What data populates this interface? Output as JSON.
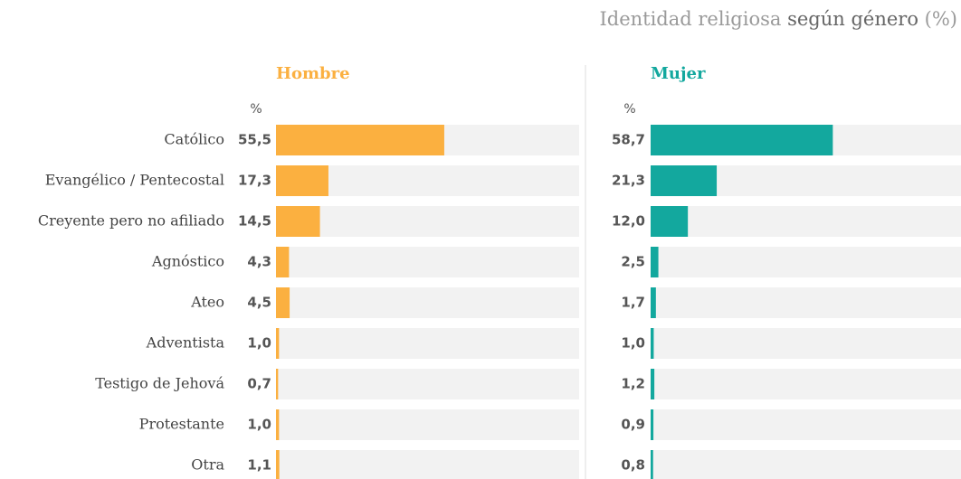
{
  "chart_data": {
    "type": "bar",
    "title_parts": [
      "Identidad religiosa",
      "según género",
      "(%)"
    ],
    "unit_label": "%",
    "categories": [
      "Católico",
      "Evangélico / Pentecostal",
      "Creyente pero no afiliado",
      "Agnóstico",
      "Ateo",
      "Adventista",
      "Testigo de Jehová",
      "Protestante",
      "Otra"
    ],
    "xlim": [
      0,
      100
    ],
    "series": [
      {
        "name": "Hombre",
        "color": "#fbb040",
        "values": [
          55.5,
          17.3,
          14.5,
          4.3,
          4.5,
          1.0,
          0.7,
          1.0,
          1.1
        ],
        "value_labels": [
          "55,5",
          "17,3",
          "14,5",
          "4,3",
          "4,5",
          "1,0",
          "0,7",
          "1,0",
          "1,1"
        ]
      },
      {
        "name": "Mujer",
        "color": "#13a89e",
        "values": [
          58.7,
          21.3,
          12.0,
          2.5,
          1.7,
          1.0,
          1.2,
          0.9,
          0.8
        ],
        "value_labels": [
          "58,7",
          "21,3",
          "12,0",
          "2,5",
          "1,7",
          "1,0",
          "1,2",
          "0,9",
          "0,8"
        ]
      }
    ]
  }
}
